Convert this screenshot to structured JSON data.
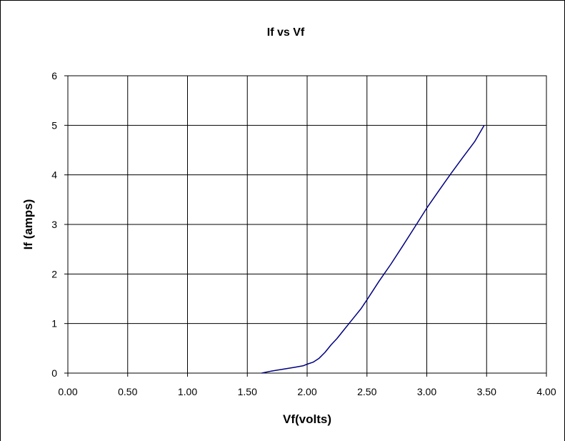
{
  "chart_data": {
    "type": "line",
    "title": "If vs Vf",
    "xlabel": "Vf(volts)",
    "ylabel": "If (amps)",
    "xlim": [
      0,
      4
    ],
    "ylim": [
      0,
      6
    ],
    "x_ticks": [
      "0.00",
      "0.50",
      "1.00",
      "1.50",
      "2.00",
      "2.50",
      "3.00",
      "3.50",
      "4.00"
    ],
    "y_ticks": [
      "0",
      "1",
      "2",
      "3",
      "4",
      "5",
      "6"
    ],
    "grid": true,
    "legend": "none",
    "series": [
      {
        "color": "#000080",
        "x": [
          1.62,
          1.7,
          1.8,
          1.9,
          1.97,
          2.0,
          2.05,
          2.1,
          2.15,
          2.2,
          2.25,
          2.3,
          2.35,
          2.4,
          2.45,
          2.5,
          2.6,
          2.7,
          2.8,
          2.9,
          3.0,
          3.1,
          3.2,
          3.3,
          3.4,
          3.48
        ],
        "y": [
          0,
          0.04,
          0.08,
          0.12,
          0.15,
          0.18,
          0.22,
          0.3,
          0.42,
          0.57,
          0.7,
          0.85,
          1.0,
          1.15,
          1.3,
          1.48,
          1.85,
          2.2,
          2.57,
          2.95,
          3.33,
          3.68,
          4.02,
          4.35,
          4.67,
          5.0
        ]
      }
    ]
  }
}
